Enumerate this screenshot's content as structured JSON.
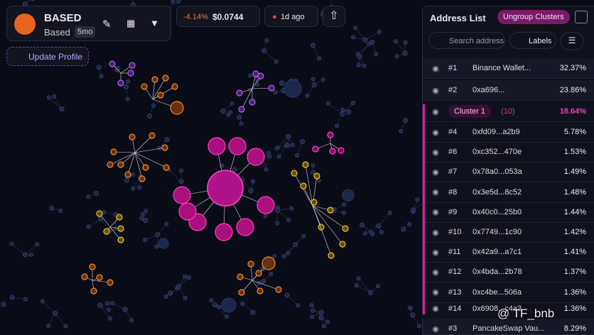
{
  "token": {
    "name": "BASED",
    "subname": "Based",
    "age": "5mo",
    "update": "Update Profile"
  },
  "price": {
    "change": "-4.14%",
    "value": "$0.0744",
    "time": "1d ago"
  },
  "panel": {
    "title": "Address List",
    "ungroup": "Ungroup Clusters",
    "search": "Search address",
    "labels": "Labels",
    "rows": [
      {
        "rank": "#1",
        "address": "Binance Wallet...",
        "percent": "32.37%"
      },
      {
        "rank": "#2",
        "address": "0xa696...",
        "percent": "23.86%"
      }
    ],
    "cluster": {
      "name": "Cluster 1",
      "count": "(10)",
      "percent": "18.64%"
    },
    "cluster_rows": [
      {
        "rank": "#4",
        "address": "0xfd09...a2b9",
        "percent": "5.78%"
      },
      {
        "rank": "#6",
        "address": "0xc352...470e",
        "percent": "1.53%"
      },
      {
        "rank": "#7",
        "address": "0x78a0...053a",
        "percent": "1.49%"
      },
      {
        "rank": "#8",
        "address": "0x3e5d...8c52",
        "percent": "1.48%"
      },
      {
        "rank": "#9",
        "address": "0x40c0...25b0",
        "percent": "1.44%"
      },
      {
        "rank": "#10",
        "address": "0x7749...1c90",
        "percent": "1.42%"
      },
      {
        "rank": "#11",
        "address": "0x42a9...a7c1",
        "percent": "1.41%"
      },
      {
        "rank": "#12",
        "address": "0x4bda...2b78",
        "percent": "1.37%"
      },
      {
        "rank": "#13",
        "address": "0xc4be...506a",
        "percent": "1.36%"
      },
      {
        "rank": "#14",
        "address": "0x6908...c4a3",
        "percent": "1.36%"
      }
    ],
    "last_row": {
      "rank": "#3",
      "address": "PancakeSwap Vau...",
      "percent": "8.29%"
    }
  },
  "watermark": "@ TF_bnb"
}
